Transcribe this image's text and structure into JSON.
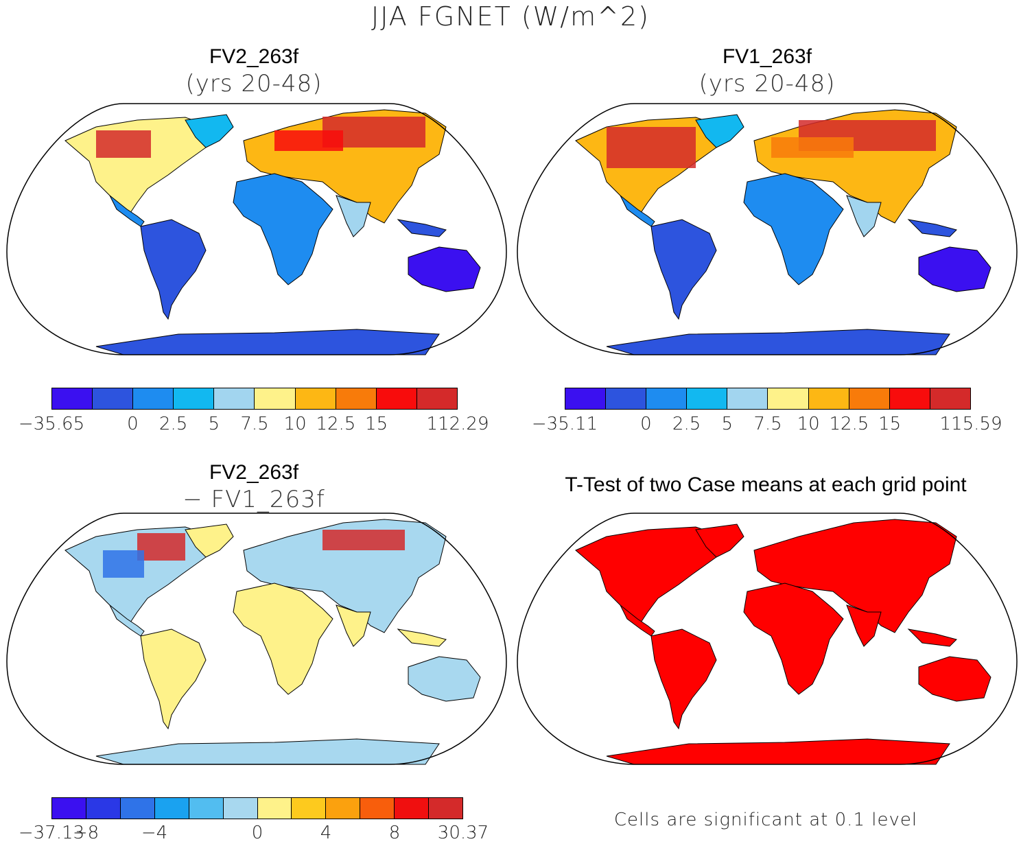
{
  "figure": {
    "title": "JJA FGNET (W/m^2)"
  },
  "chart_data": [
    {
      "type": "heatmap",
      "title": "FV2_263f",
      "subtitle": "(yrs 20-48)",
      "colors": [
        "#3b10f0",
        "#2d54de",
        "#1e8cf0",
        "#12b8f0",
        "#a2d5ef",
        "#fef28a",
        "#fdb714",
        "#f87b0a",
        "#f80c0c",
        "#d42a2a"
      ],
      "colorbar_ticks": [
        "−35.65",
        "0",
        "2.5",
        "5",
        "7.5",
        "10",
        "12.5",
        "15",
        "112.29"
      ],
      "tick_positions": [
        0,
        2,
        3,
        4,
        5,
        6,
        7,
        8,
        10
      ]
    },
    {
      "type": "heatmap",
      "title": "FV1_263f",
      "subtitle": "(yrs 20-48)",
      "colors": [
        "#3b10f0",
        "#2d54de",
        "#1e8cf0",
        "#12b8f0",
        "#a2d5ef",
        "#fef28a",
        "#fdb714",
        "#f87b0a",
        "#f80c0c",
        "#d42a2a"
      ],
      "colorbar_ticks": [
        "−35.11",
        "0",
        "2.5",
        "5",
        "7.5",
        "10",
        "12.5",
        "15",
        "115.59"
      ],
      "tick_positions": [
        0,
        2,
        3,
        4,
        5,
        6,
        7,
        8,
        10
      ]
    },
    {
      "type": "heatmap",
      "title": "FV2_263f",
      "subtitle": "− FV1_263f",
      "colors": [
        "#3b10f0",
        "#2a38e6",
        "#2f73e8",
        "#1aa2f0",
        "#52bdf0",
        "#a8d8ef",
        "#fef28a",
        "#fdca1e",
        "#fba10e",
        "#f85e0c",
        "#f00f0f",
        "#d42a2a"
      ],
      "colorbar_ticks": [
        "−37.13",
        "−8",
        "−4",
        "0",
        "4",
        "8",
        "30.37"
      ],
      "tick_positions": [
        0,
        1,
        3,
        6,
        8,
        10,
        12
      ]
    },
    {
      "type": "heatmap",
      "title": "T-Test of two Case means at each grid point",
      "subtitle": "",
      "significant_color": "#ff0000",
      "note": "Cells are significant at 0.1 level"
    }
  ]
}
